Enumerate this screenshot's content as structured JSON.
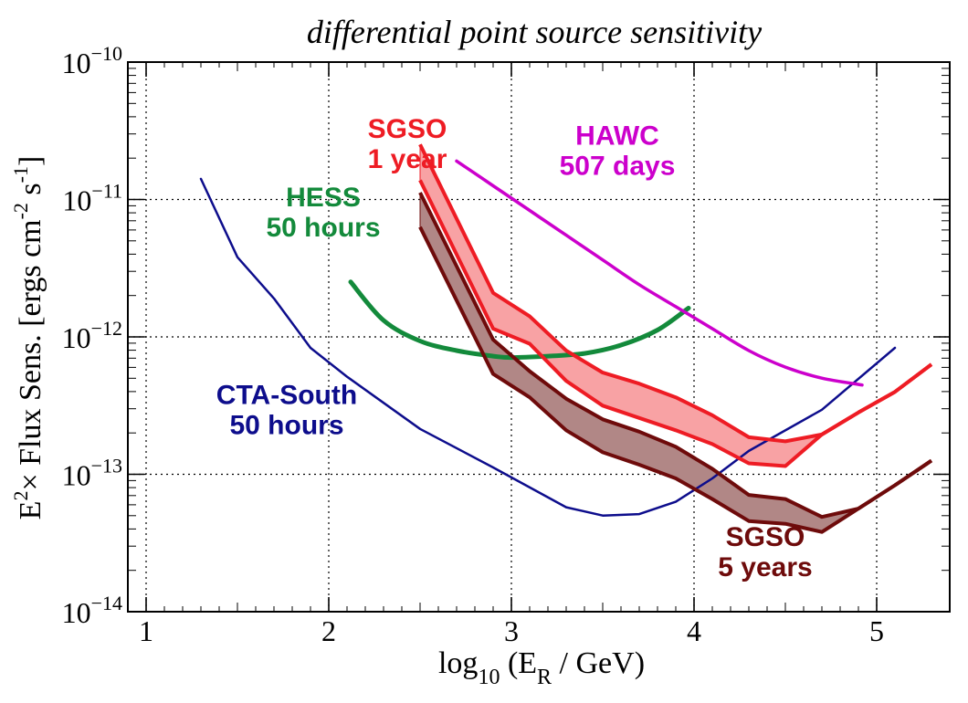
{
  "chart_data": {
    "type": "line",
    "title": "differential point source sensitivity",
    "xlabel": {
      "main": "log",
      "main_sub": "10",
      "paren_open": " (E",
      "paren_sub": "R",
      "rest": " / GeV)"
    },
    "ylabel": {
      "part1": "E",
      "sup1": "2",
      "part2": "× Flux Sens. [ergs cm",
      "sup2": "-2",
      "part3": " s",
      "sup3": "-1",
      "part4": "]"
    },
    "xlim": [
      0.9,
      5.4
    ],
    "ylim_log10": [
      -14,
      -10
    ],
    "x_ticks": [
      {
        "value": 1,
        "label": "1"
      },
      {
        "value": 2,
        "label": "2"
      },
      {
        "value": 3,
        "label": "3"
      },
      {
        "value": 4,
        "label": "4"
      },
      {
        "value": 5,
        "label": "5"
      }
    ],
    "y_ticks": [
      {
        "exp": -10,
        "base": "10",
        "sup": "−10"
      },
      {
        "exp": -11,
        "base": "10",
        "sup": "−11"
      },
      {
        "exp": -12,
        "base": "10",
        "sup": "−12"
      },
      {
        "exp": -13,
        "base": "10",
        "sup": "−13"
      },
      {
        "exp": -14,
        "base": "10",
        "sup": "−14"
      }
    ],
    "grid": true,
    "series": [
      {
        "name": "CTA-South 50 hours",
        "color": "#0d0d8c",
        "style": "line",
        "x": [
          1.3,
          1.5,
          1.7,
          1.9,
          2.1,
          2.5,
          2.9,
          3.3,
          3.5,
          3.7,
          3.9,
          4.1,
          4.3,
          4.7,
          5.1
        ],
        "log10y": [
          -10.85,
          -11.42,
          -11.72,
          -12.08,
          -12.29,
          -12.67,
          -12.95,
          -13.24,
          -13.3,
          -13.29,
          -13.2,
          -13.03,
          -12.83,
          -12.53,
          -12.08
        ]
      },
      {
        "name": "HESS 50 hours",
        "color": "#138a3b",
        "style": "curve",
        "x": [
          2.12,
          2.3,
          2.5,
          2.7,
          2.9,
          3.0,
          3.2,
          3.4,
          3.6,
          3.8,
          3.97
        ],
        "log10y": [
          -11.6,
          -11.88,
          -12.03,
          -12.1,
          -12.14,
          -12.15,
          -12.14,
          -12.12,
          -12.06,
          -11.95,
          -11.79
        ]
      },
      {
        "name": "HAWC 507 days",
        "color": "#cc00cc",
        "style": "curve",
        "x": [
          2.7,
          2.9,
          3.1,
          3.3,
          3.5,
          3.7,
          3.9,
          4.1,
          4.3,
          4.5,
          4.7,
          4.92
        ],
        "log10y": [
          -10.72,
          -10.9,
          -11.08,
          -11.26,
          -11.44,
          -11.62,
          -11.78,
          -11.94,
          -12.1,
          -12.22,
          -12.3,
          -12.35
        ]
      },
      {
        "name": "SGSO 1 year",
        "color": "#ee1c24",
        "fill": "#f8a2a4",
        "style": "band",
        "x": [
          2.5,
          2.9,
          3.1,
          3.3,
          3.5,
          3.7,
          3.9,
          4.1,
          4.3,
          4.5,
          4.7,
          4.9,
          5.1,
          5.3
        ],
        "upper": [
          -10.6,
          -11.68,
          -11.85,
          -12.1,
          -12.26,
          -12.34,
          -12.44,
          -12.57,
          -12.73,
          -12.76,
          -12.71,
          -12.55,
          -12.4,
          -12.2
        ],
        "lower": [
          -10.86,
          -11.94,
          -12.05,
          -12.32,
          -12.5,
          -12.59,
          -12.68,
          -12.78,
          -12.92,
          -12.94,
          -12.71,
          -12.55,
          -12.4,
          -12.2
        ]
      },
      {
        "name": "SGSO 5 years",
        "color": "#6e0b0b",
        "fill": "#b18786",
        "style": "band",
        "x": [
          2.5,
          2.9,
          3.1,
          3.3,
          3.5,
          3.7,
          3.9,
          4.1,
          4.3,
          4.5,
          4.7,
          4.9,
          5.1,
          5.3
        ],
        "upper": [
          -10.95,
          -12.02,
          -12.25,
          -12.45,
          -12.6,
          -12.69,
          -12.8,
          -12.96,
          -13.15,
          -13.18,
          -13.31,
          -13.25,
          -13.08,
          -12.9
        ],
        "lower": [
          -11.2,
          -12.27,
          -12.44,
          -12.68,
          -12.84,
          -12.93,
          -13.03,
          -13.18,
          -13.34,
          -13.36,
          -13.42,
          -13.25,
          -13.08,
          -12.9
        ]
      }
    ],
    "labels": [
      {
        "lines": [
          "SGSO",
          "1 year"
        ],
        "color": "#ee1c24",
        "x": 2.43,
        "log10y": -10.55
      },
      {
        "lines": [
          "HAWC",
          "507 days"
        ],
        "color": "#cc00cc",
        "x": 3.58,
        "log10y": -10.6
      },
      {
        "lines": [
          "HESS",
          "50 hours"
        ],
        "color": "#138a3b",
        "x": 1.97,
        "log10y": -11.05
      },
      {
        "lines": [
          "CTA-South",
          "50 hours"
        ],
        "color": "#0d0d8c",
        "x": 1.77,
        "log10y": -12.49
      },
      {
        "lines": [
          "SGSO",
          "5 years"
        ],
        "color": "#6e0b0b",
        "x": 4.39,
        "log10y": -13.52
      }
    ]
  }
}
